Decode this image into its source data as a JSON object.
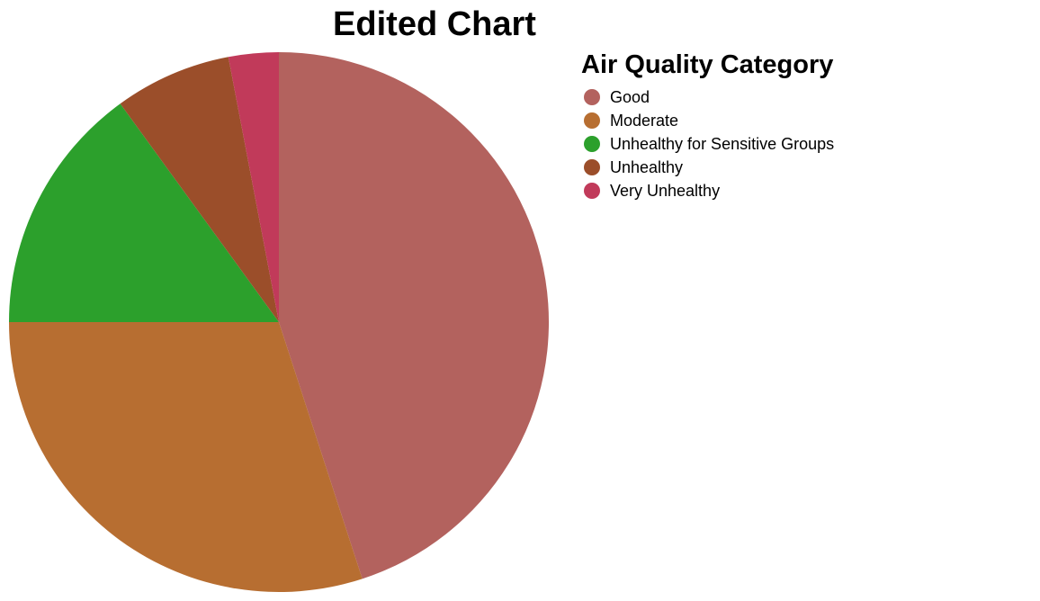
{
  "chart_data": {
    "type": "pie",
    "title": "Edited Chart",
    "legend_title": "Air Quality Category",
    "legend_position": "right",
    "categories": [
      "Good",
      "Moderate",
      "Unhealthy for Sensitive Groups",
      "Unhealthy",
      "Very Unhealthy"
    ],
    "values": [
      45,
      30,
      15,
      7,
      3
    ],
    "colors": [
      "#b3625e",
      "#b76e31",
      "#2ca02c",
      "#9b4e2a",
      "#c13a5a"
    ]
  }
}
